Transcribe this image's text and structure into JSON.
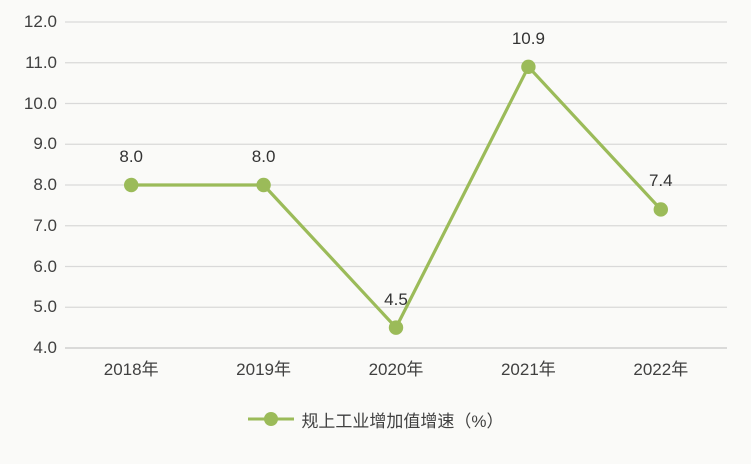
{
  "chart_data": {
    "type": "line",
    "title": "",
    "xlabel": "",
    "ylabel": "",
    "categories": [
      "2018年",
      "2019年",
      "2020年",
      "2021年",
      "2022年"
    ],
    "series": [
      {
        "name": "规上工业增加值增速（%）",
        "values": [
          8.0,
          8.0,
          4.5,
          10.9,
          7.4
        ],
        "data_labels": [
          "8.0",
          "8.0",
          "4.5",
          "10.9",
          "7.4"
        ]
      }
    ],
    "ylim": [
      4.0,
      12.0
    ],
    "ytick_step": 1.0,
    "ytick_labels": [
      "12.0",
      "11.0",
      "10.0",
      "9.0",
      "8.0",
      "7.0",
      "6.0",
      "5.0",
      "4.0"
    ],
    "grid": true,
    "legend_position": "bottom",
    "colors": {
      "line": "#9bbb59",
      "marker": "#9bbb59",
      "gridline": "#d9d9d9",
      "axis_line": "#c8c8c6",
      "text": "#404040",
      "background": "#fafaf8"
    }
  }
}
